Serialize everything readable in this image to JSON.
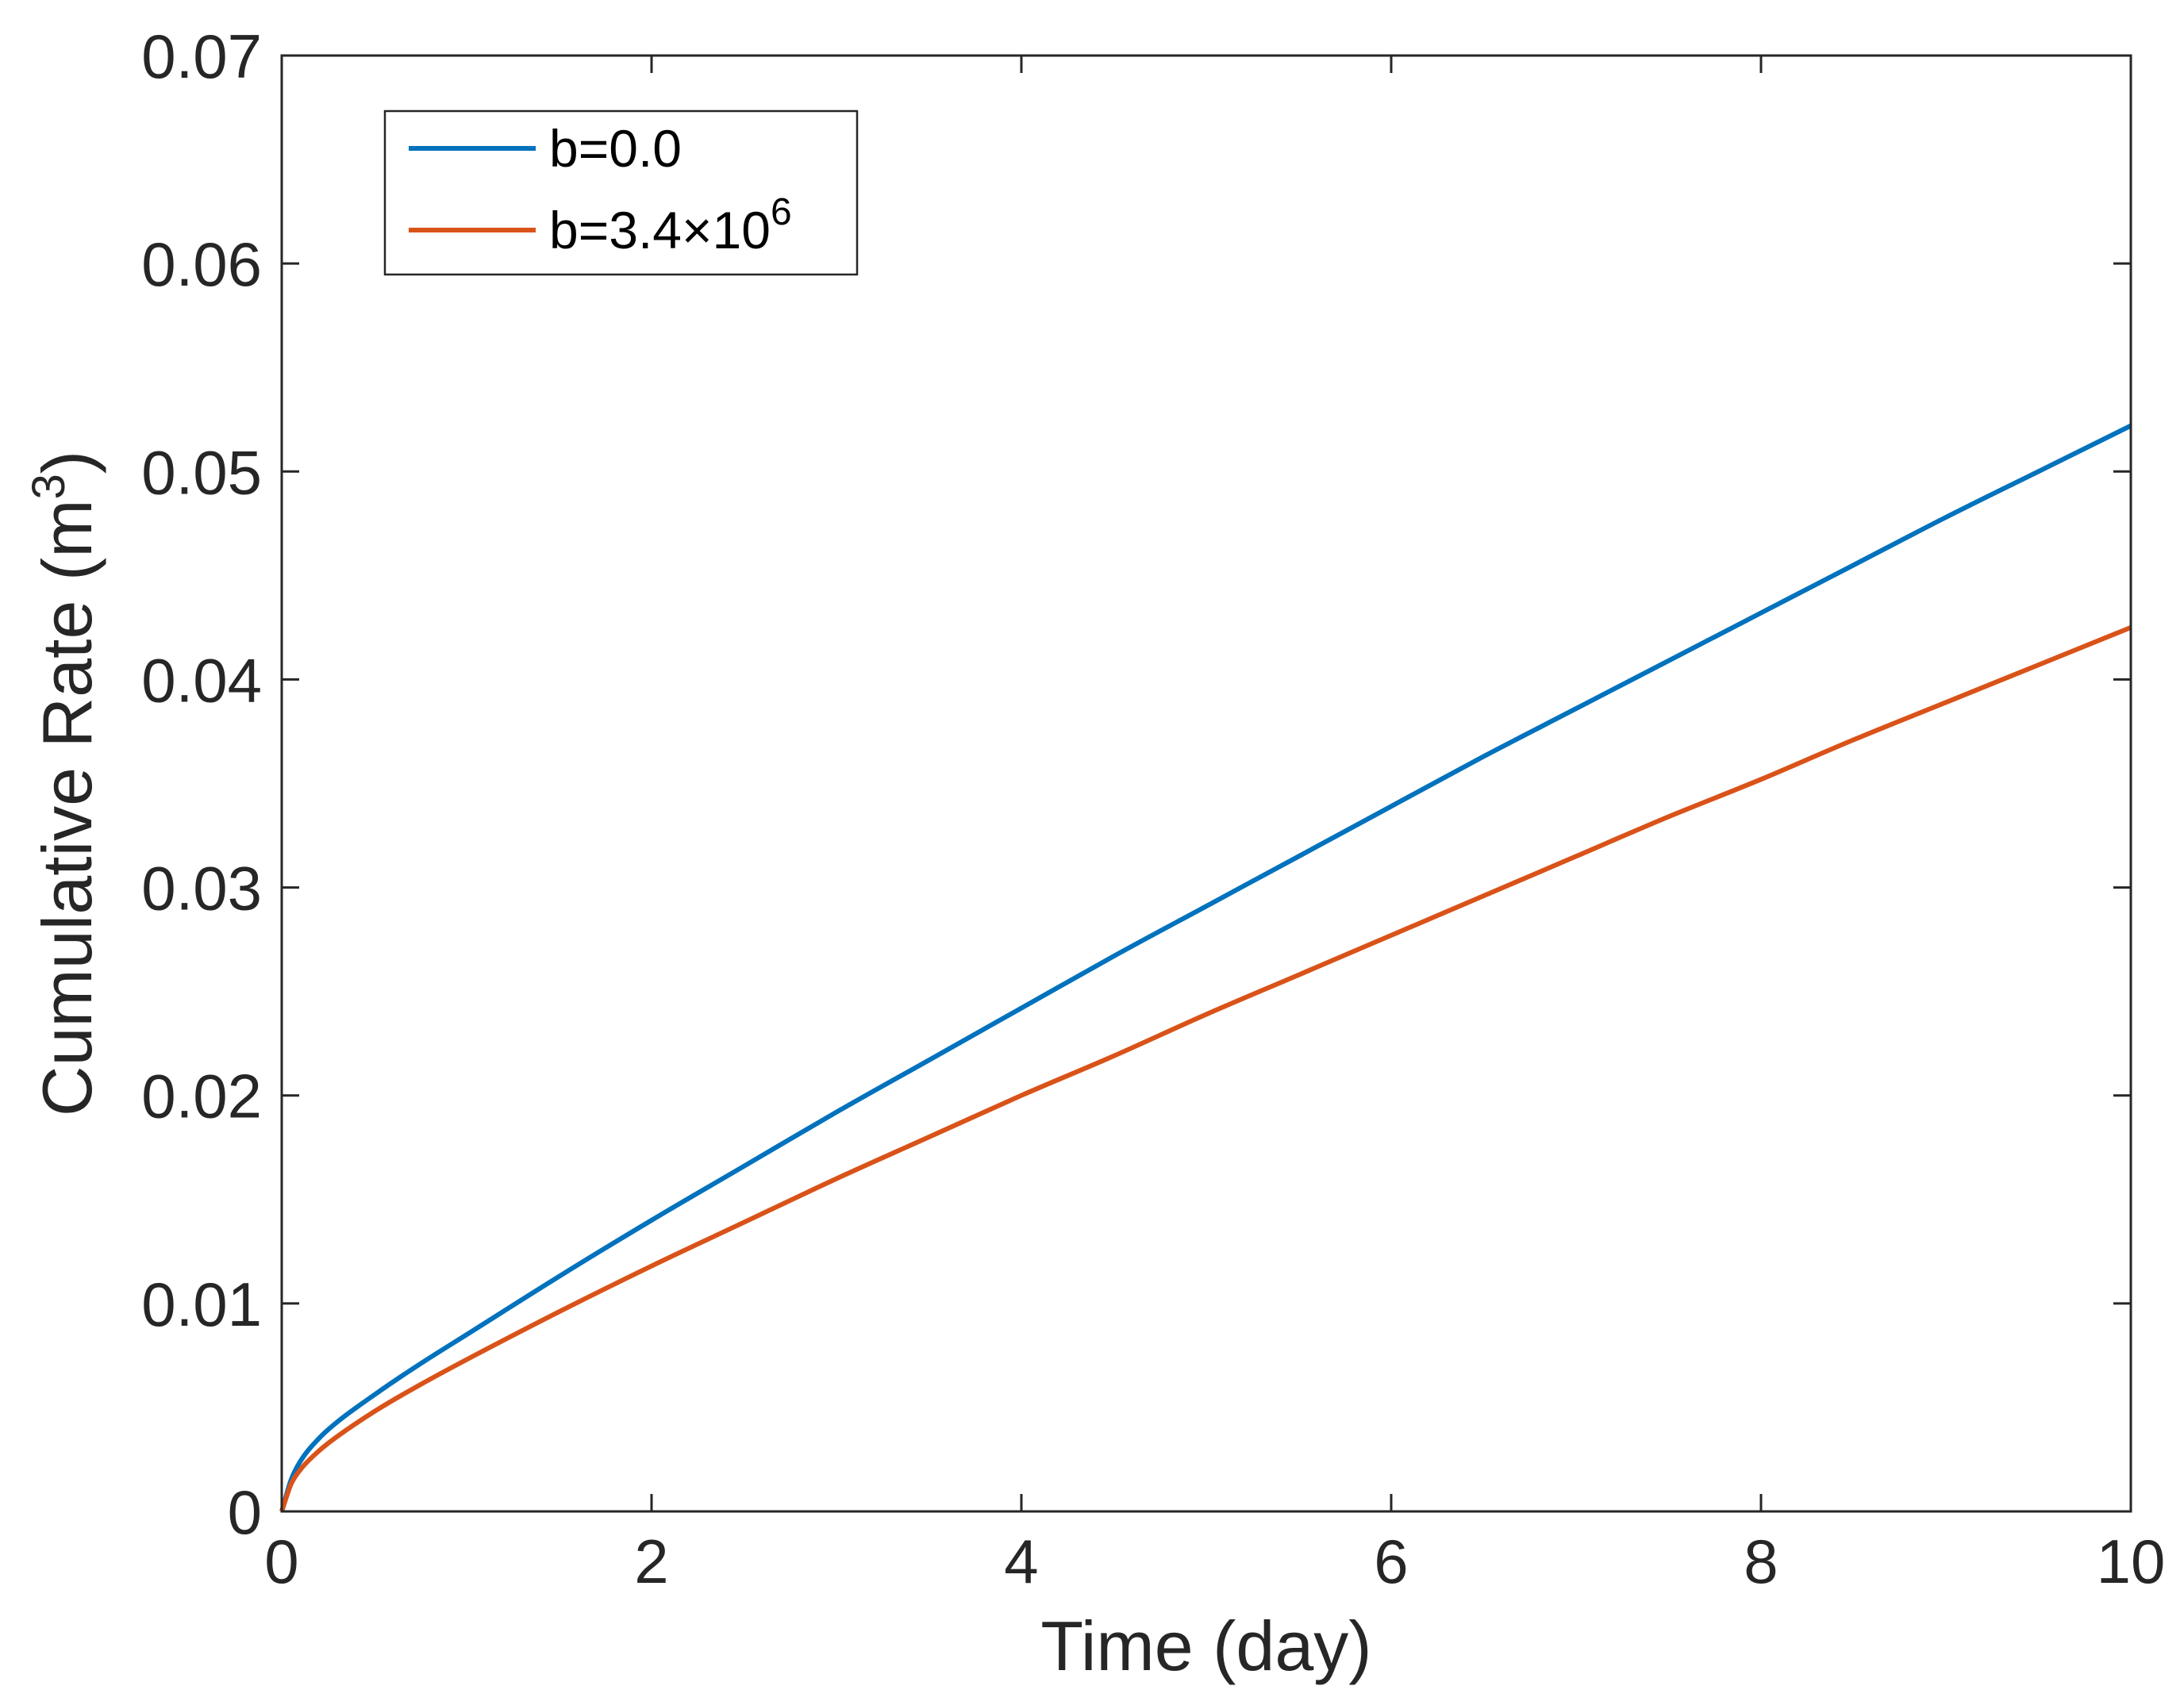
{
  "chart_data": {
    "type": "line",
    "title": "",
    "xlabel": "Time (day)",
    "ylabel": {
      "main": "Cumulative Rate (m",
      "sup": "3",
      "close": ")"
    },
    "xlim": [
      0,
      10
    ],
    "ylim": [
      0,
      0.07
    ],
    "xticks": [
      0,
      2,
      4,
      6,
      8,
      10
    ],
    "xtick_labels": [
      "0",
      "2",
      "4",
      "6",
      "8",
      "10"
    ],
    "yticks": [
      0,
      0.01,
      0.02,
      0.03,
      0.04,
      0.05,
      0.06,
      0.07
    ],
    "ytick_labels": [
      "0",
      "0.01",
      "0.02",
      "0.03",
      "0.04",
      "0.05",
      "0.06",
      "0.07"
    ],
    "grid": false,
    "legend_position": "top-left",
    "x": [
      0,
      0.05,
      0.1,
      0.2,
      0.3,
      0.5,
      0.75,
      1,
      1.5,
      2,
      2.5,
      3,
      3.5,
      4,
      4.5,
      5,
      5.5,
      6,
      6.5,
      7,
      7.5,
      8,
      8.5,
      9,
      9.5,
      10
    ],
    "series": [
      {
        "name": "b=0.0",
        "color": "#0072BD",
        "values": [
          0,
          0.0015,
          0.0024,
          0.0035,
          0.0043,
          0.0056,
          0.0071,
          0.0085,
          0.0113,
          0.014,
          0.0166,
          0.0192,
          0.0217,
          0.0242,
          0.0267,
          0.0291,
          0.0315,
          0.0339,
          0.0363,
          0.0386,
          0.0409,
          0.0432,
          0.0455,
          0.0478,
          0.05,
          0.0522
        ]
      },
      {
        "name": "b=3.4×10^6",
        "color": "#D95319",
        "values": [
          0,
          0.0013,
          0.002,
          0.0029,
          0.0036,
          0.0048,
          0.0061,
          0.0073,
          0.0096,
          0.0118,
          0.0139,
          0.016,
          0.018,
          0.02,
          0.0219,
          0.0239,
          0.0258,
          0.0277,
          0.0296,
          0.0315,
          0.0334,
          0.0352,
          0.0371,
          0.0389,
          0.0407,
          0.0425
        ]
      }
    ],
    "legend": {
      "entries": [
        {
          "text": "b=0.0"
        },
        {
          "main": "b=3.4×10",
          "sup": "6"
        }
      ]
    }
  }
}
